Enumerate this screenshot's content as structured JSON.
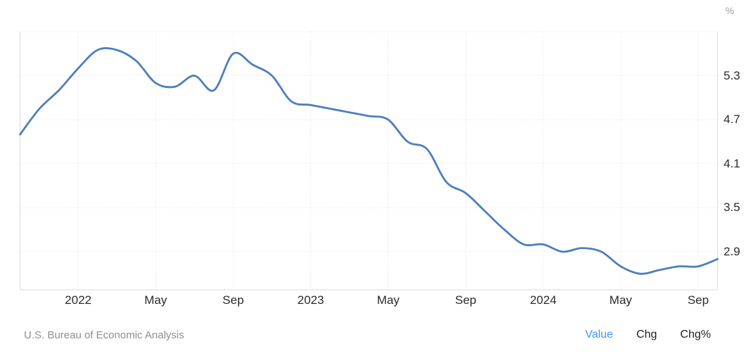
{
  "chart_data": {
    "type": "line",
    "unit": "%",
    "x": [
      "Oct 2021",
      "Nov 2021",
      "Dec 2021",
      "Jan 2022",
      "Feb 2022",
      "Mar 2022",
      "Apr 2022",
      "May 2022",
      "Jun 2022",
      "Jul 2022",
      "Aug 2022",
      "Sep 2022",
      "Oct 2022",
      "Nov 2022",
      "Dec 2022",
      "Jan 2023",
      "Feb 2023",
      "Mar 2023",
      "Apr 2023",
      "May 2023",
      "Jun 2023",
      "Jul 2023",
      "Aug 2023",
      "Sep 2023",
      "Oct 2023",
      "Nov 2023",
      "Dec 2023",
      "Jan 2024",
      "Feb 2024",
      "Mar 2024",
      "Apr 2024",
      "May 2024",
      "Jun 2024",
      "Jul 2024",
      "Aug 2024",
      "Sep 2024",
      "Oct 2024"
    ],
    "values": [
      4.5,
      4.85,
      5.1,
      5.4,
      5.65,
      5.65,
      5.5,
      5.2,
      5.15,
      5.3,
      5.1,
      5.6,
      5.45,
      5.3,
      4.95,
      4.9,
      4.85,
      4.8,
      4.75,
      4.7,
      4.4,
      4.3,
      3.85,
      3.7,
      3.45,
      3.2,
      3.0,
      3.0,
      2.9,
      2.95,
      2.9,
      2.7,
      2.6,
      2.65,
      2.7,
      2.7,
      2.8
    ],
    "xticks": [
      {
        "i": 3,
        "label": "2022"
      },
      {
        "i": 7,
        "label": "May"
      },
      {
        "i": 11,
        "label": "Sep"
      },
      {
        "i": 15,
        "label": "2023"
      },
      {
        "i": 19,
        "label": "May"
      },
      {
        "i": 23,
        "label": "Sep"
      },
      {
        "i": 27,
        "label": "2024"
      },
      {
        "i": 31,
        "label": "May"
      },
      {
        "i": 35,
        "label": "Sep"
      }
    ],
    "yticks": [
      5.3,
      4.7,
      4.1,
      3.5,
      2.9
    ],
    "grid_top_value": 5.9,
    "ylim": [
      2.38,
      5.9
    ],
    "grid": true,
    "legend_position": "none",
    "line_color": "#4d7ebf"
  },
  "style": {
    "grid_color": "#e0e0e0",
    "border_color": "#dadada",
    "tick_label_color": "#2b2b2b",
    "unit_color": "#98a0ac",
    "active_link_color": "#3b99f8",
    "link_color": "#1e1e1e"
  },
  "footer": {
    "source": "U.S. Bureau of Economic Analysis",
    "links": [
      {
        "label": "Value",
        "active": true
      },
      {
        "label": "Chg",
        "active": false
      },
      {
        "label": "Chg%",
        "active": false
      }
    ]
  }
}
